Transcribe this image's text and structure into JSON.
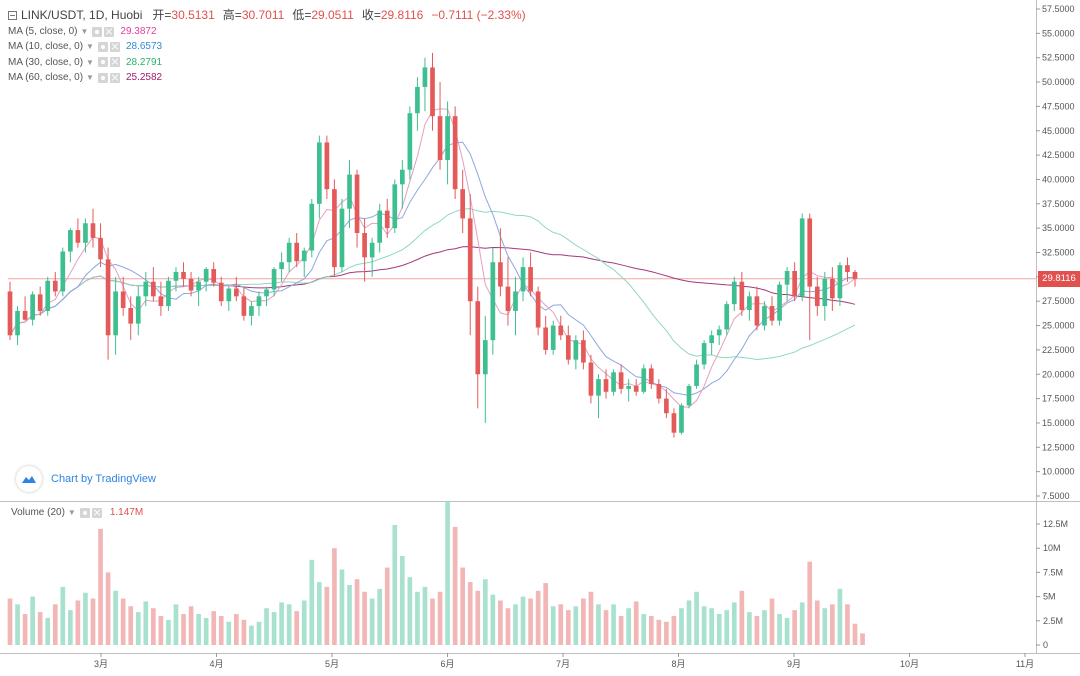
{
  "header": {
    "symbol": "LINK/USDT, 1D, Huobi",
    "open_label": "开=",
    "open": "30.5131",
    "high_label": "高=",
    "high": "30.7011",
    "low_label": "低=",
    "low": "29.0511",
    "close_label": "收=",
    "close": "29.8116",
    "change": "−0.7111 (−2.33%)"
  },
  "indicators": [
    {
      "label": "MA (5, close, 0)",
      "value": "29.3872",
      "color": "#e63c9c"
    },
    {
      "label": "MA (10, close, 0)",
      "value": "28.6573",
      "color": "#2f8ad6"
    },
    {
      "label": "MA (30, close, 0)",
      "value": "28.2791",
      "color": "#26b36b"
    },
    {
      "label": "MA (60, close, 0)",
      "value": "25.2582",
      "color": "#a21a6f"
    }
  ],
  "volume_legend": {
    "label": "Volume (20)",
    "value": "1.147M"
  },
  "branding": {
    "text": "Chart by TradingView"
  },
  "last_price_tag": "29.8116",
  "colors": {
    "up": "#3dbf8f",
    "down": "#e45a5a",
    "up_vol": "#a8e2cf",
    "down_vol": "#f3b6b6",
    "ma5": "#e3a0c0",
    "ma10": "#8da8dd",
    "ma30": "#8fd8c0",
    "ma60": "#a23a7a",
    "price_line": "#f0a5a5"
  },
  "chart_data": {
    "type": "candlestick",
    "title": "LINK/USDT, 1D, Huobi",
    "price_axis": {
      "ticks": [
        "57.5000",
        "55.0000",
        "52.5000",
        "50.0000",
        "47.5000",
        "45.0000",
        "42.5000",
        "40.0000",
        "37.5000",
        "35.0000",
        "32.5000",
        "30.0000",
        "27.5000",
        "25.0000",
        "22.5000",
        "20.0000",
        "17.5000",
        "15.0000",
        "12.5000",
        "10.0000",
        "7.5000"
      ],
      "range": [
        7.5,
        57.5
      ]
    },
    "volume_axis": {
      "ticks": [
        "12.5M",
        "10M",
        "7.5M",
        "5M",
        "2.5M",
        "0"
      ],
      "range": [
        0,
        12.5
      ]
    },
    "time_axis": {
      "ticks": [
        "3月",
        "4月",
        "5月",
        "6月",
        "7月",
        "8月",
        "9月",
        "10月",
        "11月"
      ]
    },
    "candles": [
      [
        28.5,
        29.5,
        23.5,
        24.0
      ],
      [
        24.0,
        27.0,
        23.0,
        26.5
      ],
      [
        26.5,
        28.0,
        25.5,
        25.6
      ],
      [
        25.6,
        28.5,
        25.0,
        28.2
      ],
      [
        28.2,
        29.0,
        26.0,
        26.5
      ],
      [
        26.5,
        30.0,
        26.0,
        29.6
      ],
      [
        29.6,
        30.5,
        28.0,
        28.5
      ],
      [
        28.5,
        33.0,
        28.0,
        32.6
      ],
      [
        32.6,
        35.0,
        31.5,
        34.8
      ],
      [
        34.8,
        36.0,
        33.0,
        33.5
      ],
      [
        33.5,
        36.0,
        32.5,
        35.5
      ],
      [
        35.5,
        37.0,
        33.0,
        34.0
      ],
      [
        34.0,
        35.5,
        31.0,
        31.8
      ],
      [
        31.8,
        33.0,
        21.5,
        24.0
      ],
      [
        24.0,
        30.0,
        22.0,
        28.5
      ],
      [
        28.5,
        30.0,
        26.0,
        26.8
      ],
      [
        26.8,
        28.0,
        23.5,
        25.2
      ],
      [
        25.2,
        29.0,
        24.0,
        28.0
      ],
      [
        28.0,
        30.5,
        27.0,
        29.5
      ],
      [
        29.5,
        31.0,
        27.5,
        28.0
      ],
      [
        28.0,
        29.5,
        26.0,
        27.0
      ],
      [
        27.0,
        30.0,
        26.5,
        29.6
      ],
      [
        29.6,
        31.0,
        28.5,
        30.5
      ],
      [
        30.5,
        31.5,
        29.0,
        29.8
      ],
      [
        29.8,
        30.5,
        28.0,
        28.6
      ],
      [
        28.6,
        30.0,
        27.0,
        29.5
      ],
      [
        29.5,
        31.0,
        28.5,
        30.8
      ],
      [
        30.8,
        31.5,
        29.0,
        29.4
      ],
      [
        29.4,
        30.0,
        27.0,
        27.5
      ],
      [
        27.5,
        29.0,
        26.5,
        28.8
      ],
      [
        28.8,
        30.0,
        27.5,
        28.0
      ],
      [
        28.0,
        29.0,
        25.5,
        26.0
      ],
      [
        26.0,
        27.5,
        25.0,
        27.0
      ],
      [
        27.0,
        28.5,
        26.0,
        28.0
      ],
      [
        28.0,
        29.0,
        27.0,
        28.7
      ],
      [
        28.7,
        31.0,
        28.0,
        30.8
      ],
      [
        30.8,
        32.5,
        29.5,
        31.5
      ],
      [
        31.5,
        34.0,
        30.5,
        33.5
      ],
      [
        33.5,
        34.5,
        31.0,
        31.6
      ],
      [
        31.6,
        33.0,
        30.0,
        32.7
      ],
      [
        32.7,
        38.0,
        32.0,
        37.5
      ],
      [
        37.5,
        44.5,
        36.0,
        43.8
      ],
      [
        43.8,
        44.5,
        38.0,
        39.0
      ],
      [
        39.0,
        40.0,
        30.0,
        31.0
      ],
      [
        31.0,
        38.0,
        30.5,
        37.0
      ],
      [
        37.0,
        42.0,
        35.0,
        40.5
      ],
      [
        40.5,
        41.0,
        33.0,
        34.5
      ],
      [
        34.5,
        36.0,
        29.5,
        32.0
      ],
      [
        32.0,
        34.0,
        30.0,
        33.5
      ],
      [
        33.5,
        37.5,
        32.5,
        36.8
      ],
      [
        36.8,
        38.0,
        34.0,
        35.0
      ],
      [
        35.0,
        40.0,
        34.5,
        39.5
      ],
      [
        39.5,
        42.0,
        37.0,
        41.0
      ],
      [
        41.0,
        47.5,
        40.0,
        46.8
      ],
      [
        46.8,
        50.5,
        45.0,
        49.5
      ],
      [
        49.5,
        52.5,
        47.0,
        51.5
      ],
      [
        51.5,
        53.0,
        45.0,
        46.5
      ],
      [
        46.5,
        50.0,
        41.0,
        42.0
      ],
      [
        42.0,
        48.0,
        39.5,
        46.5
      ],
      [
        46.5,
        47.5,
        38.0,
        39.0
      ],
      [
        39.0,
        41.0,
        34.5,
        36.0
      ],
      [
        36.0,
        38.5,
        24.0,
        27.5
      ],
      [
        27.5,
        29.0,
        16.5,
        20.0
      ],
      [
        20.0,
        26.0,
        15.0,
        23.5
      ],
      [
        23.5,
        33.0,
        22.0,
        31.5
      ],
      [
        31.5,
        35.0,
        28.0,
        29.0
      ],
      [
        29.0,
        32.0,
        25.0,
        26.5
      ],
      [
        26.5,
        30.0,
        24.0,
        28.5
      ],
      [
        28.5,
        32.0,
        27.5,
        31.0
      ],
      [
        31.0,
        32.5,
        28.0,
        28.5
      ],
      [
        28.5,
        29.0,
        24.0,
        24.8
      ],
      [
        24.8,
        26.0,
        22.0,
        22.5
      ],
      [
        22.5,
        25.5,
        22.0,
        25.0
      ],
      [
        25.0,
        26.0,
        23.5,
        24.0
      ],
      [
        24.0,
        25.0,
        21.0,
        21.5
      ],
      [
        21.5,
        24.0,
        20.5,
        23.5
      ],
      [
        23.5,
        24.5,
        20.5,
        21.2
      ],
      [
        21.2,
        22.0,
        17.0,
        17.8
      ],
      [
        17.8,
        20.0,
        15.5,
        19.5
      ],
      [
        19.5,
        20.5,
        17.5,
        18.2
      ],
      [
        18.2,
        20.5,
        17.8,
        20.2
      ],
      [
        20.2,
        21.0,
        18.0,
        18.5
      ],
      [
        18.5,
        19.5,
        17.2,
        18.8
      ],
      [
        18.8,
        19.5,
        17.8,
        18.2
      ],
      [
        18.2,
        21.0,
        18.0,
        20.6
      ],
      [
        20.6,
        21.0,
        18.5,
        19.0
      ],
      [
        19.0,
        19.5,
        17.0,
        17.5
      ],
      [
        17.5,
        18.5,
        15.5,
        16.0
      ],
      [
        16.0,
        16.5,
        13.5,
        14.0
      ],
      [
        14.0,
        17.0,
        13.8,
        16.8
      ],
      [
        16.8,
        19.0,
        16.5,
        18.8
      ],
      [
        18.8,
        21.5,
        18.5,
        21.0
      ],
      [
        21.0,
        23.5,
        20.5,
        23.2
      ],
      [
        23.2,
        24.5,
        22.0,
        24.0
      ],
      [
        24.0,
        25.0,
        23.0,
        24.6
      ],
      [
        24.6,
        27.5,
        24.0,
        27.2
      ],
      [
        27.2,
        30.0,
        26.5,
        29.5
      ],
      [
        29.5,
        30.5,
        26.0,
        26.6
      ],
      [
        26.6,
        28.5,
        25.5,
        28.0
      ],
      [
        28.0,
        29.0,
        24.5,
        25.0
      ],
      [
        25.0,
        27.5,
        24.5,
        27.0
      ],
      [
        27.0,
        28.0,
        25.0,
        25.5
      ],
      [
        25.5,
        29.5,
        25.0,
        29.2
      ],
      [
        29.2,
        31.0,
        27.5,
        30.6
      ],
      [
        30.6,
        31.5,
        27.5,
        28.0
      ],
      [
        28.0,
        36.5,
        27.5,
        36.0
      ],
      [
        36.0,
        36.5,
        23.5,
        29.0
      ],
      [
        29.0,
        30.0,
        26.0,
        27.0
      ],
      [
        27.0,
        30.5,
        25.5,
        29.8
      ],
      [
        29.8,
        31.0,
        26.5,
        27.8
      ],
      [
        27.8,
        31.5,
        27.0,
        31.2
      ],
      [
        31.2,
        32.0,
        29.5,
        30.5
      ],
      [
        30.5,
        30.7,
        29.0,
        29.8
      ]
    ],
    "volumes": [
      4.8,
      4.2,
      3.2,
      5.0,
      3.4,
      2.8,
      4.2,
      6.0,
      3.6,
      4.6,
      5.4,
      4.8,
      12.0,
      7.5,
      5.6,
      4.8,
      4.0,
      3.4,
      4.5,
      3.8,
      3.0,
      2.6,
      4.2,
      3.2,
      4.0,
      3.2,
      2.8,
      3.5,
      3.0,
      2.4,
      3.2,
      2.6,
      2.0,
      2.4,
      3.8,
      3.4,
      4.4,
      4.2,
      3.5,
      4.6,
      8.8,
      6.5,
      6.0,
      10.0,
      7.8,
      6.2,
      6.8,
      5.5,
      4.8,
      5.8,
      8.0,
      12.4,
      9.2,
      7.0,
      5.5,
      6.0,
      4.8,
      5.5,
      14.8,
      12.2,
      8.0,
      6.5,
      5.6,
      6.8,
      5.2,
      4.6,
      3.8,
      4.2,
      5.0,
      4.8,
      5.6,
      6.4,
      4.0,
      4.2,
      3.6,
      4.0,
      4.8,
      5.5,
      4.2,
      3.6,
      4.2,
      3.0,
      3.8,
      4.5,
      3.2,
      3.0,
      2.6,
      2.4,
      3.0,
      3.8,
      4.6,
      5.5,
      4.0,
      3.8,
      3.2,
      3.6,
      4.4,
      5.6,
      3.4,
      3.0,
      3.6,
      4.8,
      3.2,
      2.8,
      3.6,
      4.4,
      8.6,
      4.6,
      3.8,
      4.2,
      5.8,
      4.2,
      2.2,
      1.2
    ]
  }
}
